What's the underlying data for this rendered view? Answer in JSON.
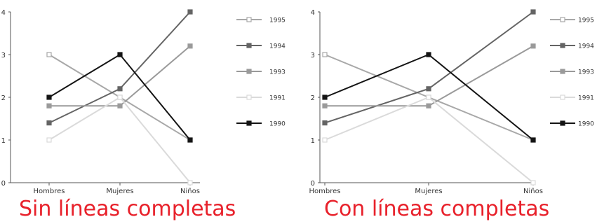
{
  "chart_data": [
    {
      "type": "line",
      "title": "Sin líneas completas",
      "categories": [
        "Hombres",
        "Mujeres",
        "Niños"
      ],
      "ylim": [
        0,
        4
      ],
      "yticks": [
        "0",
        "1",
        "2",
        "3",
        "4"
      ],
      "axes_extend_full": false,
      "grid": false,
      "legend_position": "right",
      "series": [
        {
          "name": "1995",
          "values": [
            3.0,
            2.0,
            1.0
          ],
          "color": "#a8a8a8",
          "marker_fill": "#ffffff"
        },
        {
          "name": "1994",
          "values": [
            1.4,
            2.2,
            4.0
          ],
          "color": "#646464",
          "marker_fill": "#646464"
        },
        {
          "name": "1993",
          "values": [
            1.8,
            1.8,
            3.2
          ],
          "color": "#9a9a9a",
          "marker_fill": "#9a9a9a"
        },
        {
          "name": "1991",
          "values": [
            1.0,
            2.0,
            0.0
          ],
          "color": "#dadada",
          "marker_fill": "#ffffff"
        },
        {
          "name": "1990",
          "values": [
            2.0,
            3.0,
            1.0
          ],
          "color": "#141414",
          "marker_fill": "#141414"
        }
      ]
    },
    {
      "type": "line",
      "title": "Con líneas completas",
      "categories": [
        "Hombres",
        "Mujeres",
        "Niños"
      ],
      "ylim": [
        0,
        4
      ],
      "yticks": [
        "0",
        "1",
        "2",
        "3",
        "4"
      ],
      "axes_extend_full": true,
      "grid": false,
      "legend_position": "right",
      "series": [
        {
          "name": "1995",
          "values": [
            3.0,
            2.0,
            1.0
          ],
          "color": "#a8a8a8",
          "marker_fill": "#ffffff"
        },
        {
          "name": "1994",
          "values": [
            1.4,
            2.2,
            4.0
          ],
          "color": "#646464",
          "marker_fill": "#646464"
        },
        {
          "name": "1993",
          "values": [
            1.8,
            1.8,
            3.2
          ],
          "color": "#9a9a9a",
          "marker_fill": "#9a9a9a"
        },
        {
          "name": "1991",
          "values": [
            1.0,
            2.0,
            0.0
          ],
          "color": "#dadada",
          "marker_fill": "#ffffff"
        },
        {
          "name": "1990",
          "values": [
            2.0,
            3.0,
            1.0
          ],
          "color": "#141414",
          "marker_fill": "#141414"
        }
      ]
    }
  ]
}
